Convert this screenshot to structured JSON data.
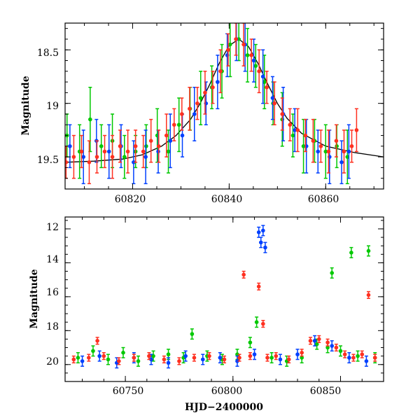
{
  "chart_data": [
    {
      "type": "scatter",
      "panel": "top",
      "xlabel": "",
      "ylabel": "Magnitude",
      "xlim": [
        60806,
        60872
      ],
      "ylim": [
        19.8,
        18.25
      ],
      "y_inverted": true,
      "xticks": [
        "60820",
        "60840",
        "60860"
      ],
      "xtick_values": [
        60820,
        60840,
        60860
      ],
      "yticks": [
        "18.5",
        "19",
        "19.5"
      ],
      "ytick_values": [
        18.5,
        19.0,
        19.5
      ],
      "series": [
        {
          "color": "#00c800",
          "x": [
            60806.4,
            60809.0,
            60811.2,
            60813.5,
            60815.8,
            60818.3,
            60820.6,
            60822.8,
            60825.1,
            60827.4,
            60829.6,
            60831.9,
            60834.1,
            60836.4,
            60838.5,
            60840.2,
            60842.0,
            60843.8,
            60845.5,
            60847.3,
            60849.1,
            60851.0,
            60853.2,
            60855.4,
            60857.7,
            60860.0,
            60862.3,
            60864.5
          ],
          "y": [
            19.3,
            19.45,
            19.15,
            19.4,
            19.35,
            19.5,
            19.45,
            19.4,
            19.3,
            19.45,
            19.2,
            19.05,
            18.95,
            18.85,
            18.7,
            18.45,
            18.4,
            18.55,
            18.65,
            18.8,
            19.0,
            19.15,
            19.3,
            19.4,
            19.35,
            19.45,
            19.4,
            19.5
          ],
          "err": [
            0.2,
            0.25,
            0.3,
            0.2,
            0.25,
            0.2,
            0.15,
            0.2,
            0.25,
            0.2,
            0.25,
            0.2,
            0.25,
            0.2,
            0.25,
            0.3,
            0.2,
            0.25,
            0.2,
            0.25,
            0.2,
            0.25,
            0.2,
            0.25,
            0.2,
            0.25,
            0.2,
            0.25
          ]
        },
        {
          "color": "#0040ff",
          "x": [
            60807.0,
            60809.8,
            60812.5,
            60815.1,
            60817.6,
            60820.2,
            60822.7,
            60825.3,
            60827.8,
            60830.3,
            60832.8,
            60835.2,
            60837.6,
            60839.6,
            60841.5,
            60843.3,
            60845.1,
            60847.0,
            60849.0,
            60851.2,
            60853.6,
            60856.0,
            60858.4,
            60860.8,
            60863.3,
            60864.8
          ],
          "y": [
            19.4,
            19.5,
            19.35,
            19.45,
            19.4,
            19.55,
            19.5,
            19.45,
            19.35,
            19.3,
            19.1,
            19.0,
            18.8,
            18.55,
            18.4,
            18.45,
            18.6,
            18.75,
            18.95,
            19.1,
            19.25,
            19.4,
            19.45,
            19.5,
            19.55,
            19.45
          ],
          "err": [
            0.2,
            0.25,
            0.2,
            0.25,
            0.2,
            0.2,
            0.25,
            0.2,
            0.25,
            0.2,
            0.25,
            0.2,
            0.25,
            0.2,
            0.2,
            0.25,
            0.2,
            0.25,
            0.2,
            0.25,
            0.2,
            0.25,
            0.2,
            0.25,
            0.2,
            0.25
          ]
        },
        {
          "color": "#ff3020",
          "x": [
            60806.2,
            60807.8,
            60809.4,
            60811.0,
            60812.6,
            60814.2,
            60815.8,
            60817.4,
            60819.0,
            60820.6,
            60822.2,
            60823.8,
            60825.4,
            60827.0,
            60828.6,
            60830.2,
            60831.8,
            60833.4,
            60835.0,
            60836.6,
            60838.2,
            60839.8,
            60841.4,
            60843.0,
            60844.6,
            60846.2,
            60847.8,
            60849.4,
            60851.0,
            60852.6,
            60854.2,
            60855.8,
            60857.4,
            60859.0,
            60860.6,
            60862.2,
            60863.8,
            60865.4,
            60866.4
          ],
          "y": [
            19.55,
            19.5,
            19.45,
            19.55,
            19.5,
            19.45,
            19.5,
            19.4,
            19.45,
            19.4,
            19.45,
            19.35,
            19.4,
            19.3,
            19.2,
            19.1,
            19.05,
            19.0,
            18.9,
            18.85,
            18.7,
            18.5,
            18.4,
            18.45,
            18.55,
            18.7,
            18.85,
            19.0,
            19.1,
            19.2,
            19.25,
            19.3,
            19.35,
            19.4,
            19.45,
            19.35,
            19.45,
            19.4,
            19.25
          ],
          "err": [
            0.15,
            0.2,
            0.15,
            0.2,
            0.15,
            0.15,
            0.2,
            0.15,
            0.2,
            0.15,
            0.15,
            0.2,
            0.15,
            0.2,
            0.15,
            0.15,
            0.2,
            0.15,
            0.2,
            0.15,
            0.2,
            0.15,
            0.15,
            0.2,
            0.15,
            0.2,
            0.15,
            0.2,
            0.15,
            0.15,
            0.2,
            0.15,
            0.2,
            0.15,
            0.2,
            0.15,
            0.2,
            0.15,
            0.2
          ]
        }
      ],
      "model_curve": {
        "color": "#000000",
        "x": [
          60806,
          60812,
          60818,
          60822,
          60826,
          60829,
          60832,
          60834,
          60836,
          60838,
          60840,
          60842,
          60844,
          60846,
          60848,
          60850,
          60852,
          60855,
          60860,
          60866,
          60872
        ],
        "y": [
          19.55,
          19.54,
          19.52,
          19.48,
          19.4,
          19.3,
          19.15,
          19.0,
          18.82,
          18.62,
          18.46,
          18.4,
          18.47,
          18.63,
          18.82,
          19.0,
          19.14,
          19.28,
          19.4,
          19.46,
          19.5
        ]
      }
    },
    {
      "type": "scatter",
      "panel": "bottom",
      "xlabel": "HJD−2400000",
      "ylabel": "Magnitude",
      "xlim": [
        60722,
        60870
      ],
      "ylim": [
        21.0,
        11.3
      ],
      "y_inverted": true,
      "xticks": [
        "60750",
        "60800",
        "60850"
      ],
      "xtick_values": [
        60750,
        60800,
        60850
      ],
      "yticks": [
        "12",
        "14",
        "16",
        "18",
        "20"
      ],
      "ytick_values": [
        12,
        14,
        16,
        18,
        20
      ],
      "series": [
        {
          "color": "#00c800",
          "x": [
            60728,
            60735,
            60742,
            60749,
            60756,
            60763,
            60770,
            60777,
            60781,
            60788,
            60795,
            60802,
            60808,
            60811,
            60818,
            60825,
            60832,
            60839,
            60844,
            60846,
            60850,
            60855,
            60858,
            60863,
            60866
          ],
          "y": [
            19.6,
            19.2,
            19.7,
            19.3,
            19.8,
            19.5,
            19.4,
            19.6,
            18.2,
            19.5,
            19.7,
            19.4,
            18.7,
            17.5,
            19.6,
            19.8,
            19.6,
            18.8,
            19.0,
            14.6,
            19.2,
            13.4,
            19.5,
            13.3,
            19.6
          ],
          "err": [
            0.3,
            0.3,
            0.3,
            0.3,
            0.3,
            0.3,
            0.3,
            0.3,
            0.3,
            0.3,
            0.3,
            0.3,
            0.3,
            0.3,
            0.3,
            0.3,
            0.3,
            0.3,
            0.3,
            0.3,
            0.3,
            0.3,
            0.3,
            0.3,
            0.3
          ]
        },
        {
          "color": "#0040ff",
          "x": [
            60730,
            60738,
            60746,
            60754,
            60762,
            60770,
            60778,
            60786,
            60794,
            60802,
            60810,
            60812,
            60813,
            60814,
            60815,
            60822,
            60830,
            60838,
            60846,
            60854,
            60862
          ],
          "y": [
            19.8,
            19.5,
            19.9,
            19.6,
            19.7,
            19.9,
            19.5,
            19.7,
            19.6,
            19.8,
            19.4,
            12.2,
            12.8,
            12.1,
            13.1,
            19.7,
            19.4,
            18.6,
            18.9,
            19.6,
            19.8
          ],
          "err": [
            0.3,
            0.3,
            0.3,
            0.3,
            0.3,
            0.3,
            0.3,
            0.3,
            0.3,
            0.3,
            0.3,
            0.3,
            0.3,
            0.3,
            0.3,
            0.3,
            0.3,
            0.3,
            0.3,
            0.3,
            0.3
          ]
        },
        {
          "color": "#ff3020",
          "x": [
            60726,
            60733,
            60737,
            60740,
            60747,
            60754,
            60761,
            60768,
            60775,
            60782,
            60789,
            60796,
            60803,
            60805,
            60808,
            60812,
            60814,
            60816,
            60820,
            60826,
            60832,
            60836,
            60840,
            60844,
            60848,
            60852,
            60856,
            60860,
            60863,
            60866
          ],
          "y": [
            19.7,
            19.6,
            18.6,
            19.5,
            19.8,
            19.6,
            19.5,
            19.7,
            19.8,
            19.6,
            19.5,
            19.7,
            19.6,
            14.7,
            19.5,
            15.4,
            17.6,
            19.6,
            19.5,
            19.7,
            19.3,
            18.6,
            18.5,
            18.7,
            19.0,
            19.4,
            19.6,
            19.4,
            15.9,
            19.6
          ],
          "err": [
            0.2,
            0.2,
            0.2,
            0.2,
            0.2,
            0.2,
            0.2,
            0.2,
            0.2,
            0.2,
            0.2,
            0.2,
            0.2,
            0.2,
            0.2,
            0.2,
            0.2,
            0.2,
            0.2,
            0.2,
            0.2,
            0.2,
            0.2,
            0.2,
            0.2,
            0.2,
            0.2,
            0.2,
            0.2,
            0.2
          ]
        }
      ]
    }
  ]
}
